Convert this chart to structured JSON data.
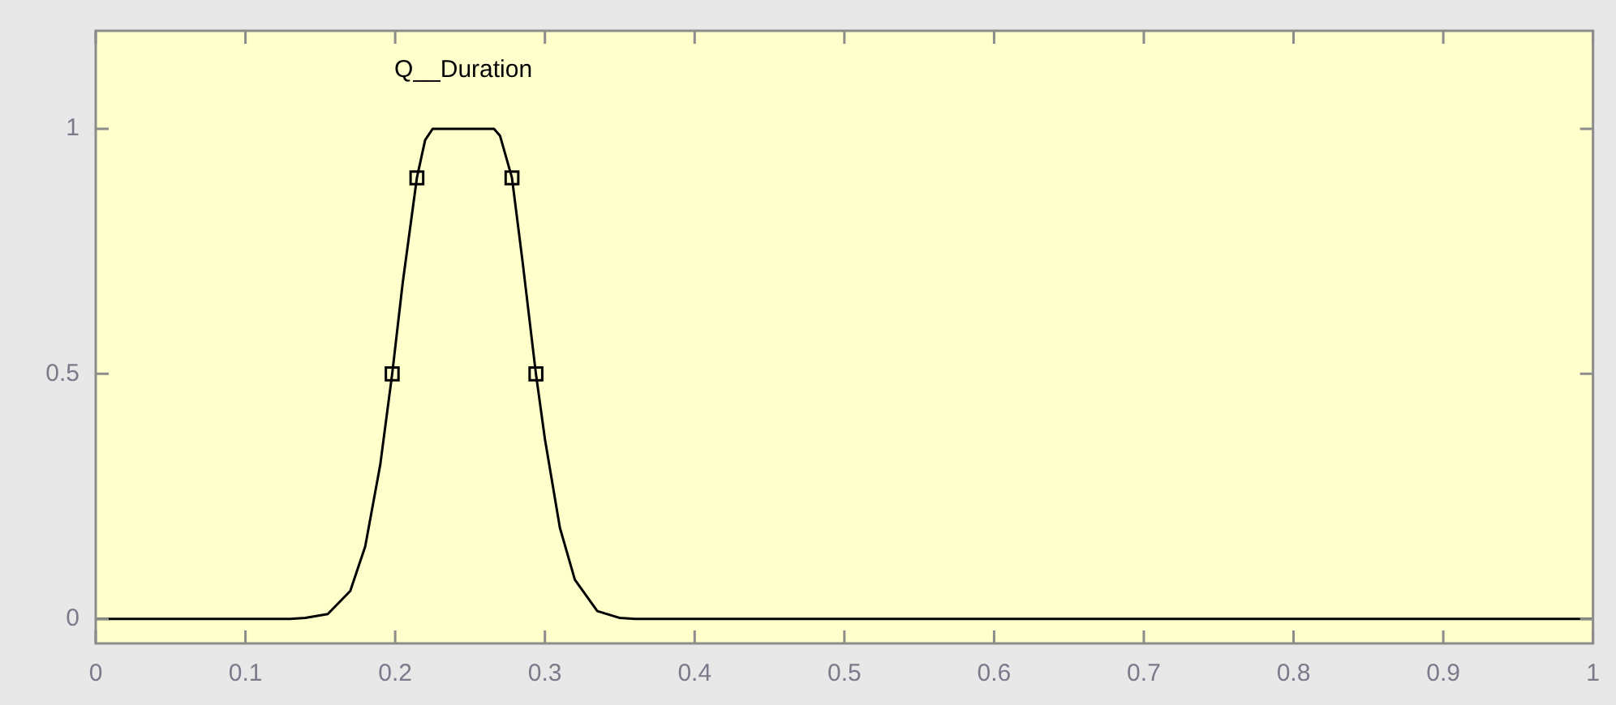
{
  "chart_data": {
    "type": "line",
    "xlim": [
      0,
      1
    ],
    "ylim": [
      -0.05,
      1.2
    ],
    "xticks": [
      0,
      0.1,
      0.2,
      0.3,
      0.4,
      0.5,
      0.6,
      0.7,
      0.8,
      0.9,
      1
    ],
    "yticks": [
      0,
      0.5,
      1
    ],
    "grid": false,
    "legend": false,
    "series": [
      {
        "name": "Q__Duration",
        "color": "#000000",
        "marker": "none",
        "x": [
          0,
          0.13,
          0.14,
          0.155,
          0.17,
          0.18,
          0.19,
          0.198,
          0.205,
          0.2145,
          0.22,
          0.225,
          0.266,
          0.27,
          0.278,
          0.285,
          0.294,
          0.3,
          0.31,
          0.32,
          0.335,
          0.35,
          0.36,
          1
        ],
        "values": [
          0,
          0,
          0.002,
          0.01,
          0.057,
          0.148,
          0.314,
          0.5,
          0.685,
          0.9,
          0.977,
          1,
          1,
          0.986,
          0.9,
          0.731,
          0.5,
          0.367,
          0.186,
          0.08,
          0.016,
          0.002,
          0,
          0
        ]
      },
      {
        "type": "scatter",
        "color": "#000000",
        "marker": "square",
        "x": [
          0.198,
          0.2145,
          0.278,
          0.294
        ],
        "values": [
          0.5,
          0.9,
          0.9,
          0.5
        ]
      }
    ]
  }
}
